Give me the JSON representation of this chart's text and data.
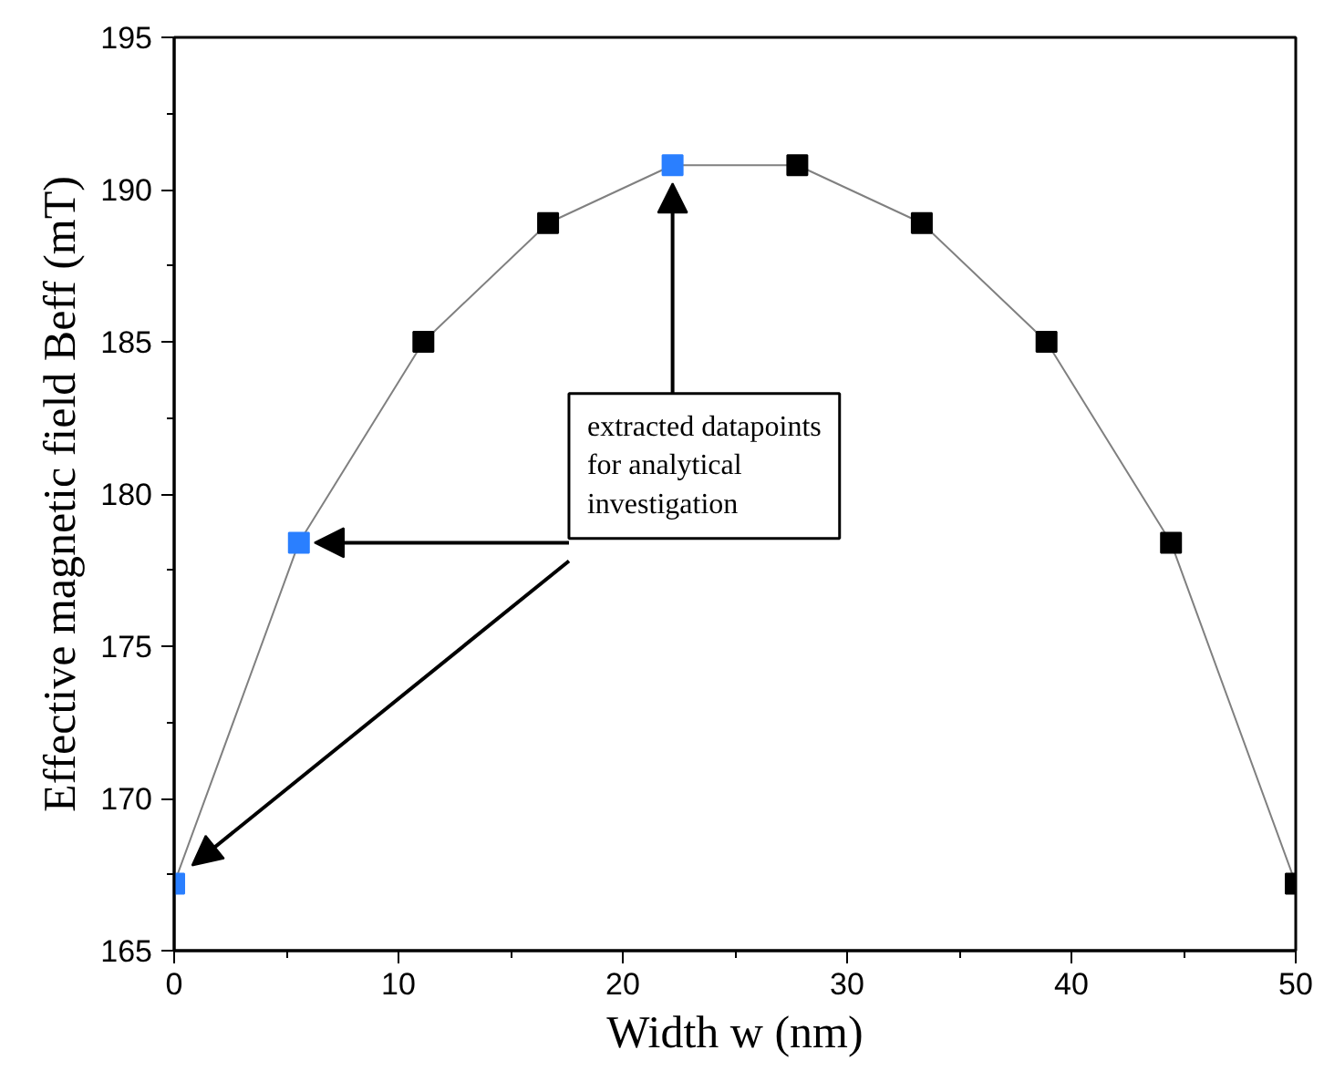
{
  "chart_data": {
    "type": "line",
    "xlabel": "Width w (nm)",
    "ylabel": "Effective magnetic field Beff (mT)",
    "x": [
      0,
      5.56,
      11.11,
      16.67,
      22.22,
      27.78,
      33.33,
      38.89,
      44.44,
      50
    ],
    "series": [
      {
        "color": "#808080",
        "values": [
          167.2,
          178.4,
          185.0,
          188.9,
          190.8,
          190.8,
          188.9,
          185.0,
          178.4,
          167.2
        ],
        "colors": [
          "#2a7fff",
          "#2a7fff",
          "#000000",
          "#000000",
          "#2a7fff",
          "#000000",
          "#000000",
          "#000000",
          "#000000",
          "#000000"
        ]
      }
    ],
    "marker": "square",
    "xlim": [
      0,
      50
    ],
    "ylim": [
      165,
      195
    ],
    "xticks": [
      0,
      10,
      20,
      30,
      40,
      50
    ],
    "yticks": [
      165,
      170,
      175,
      180,
      185,
      190,
      195
    ],
    "grid": false,
    "annotations": [
      {
        "text": "extracted datapoints\nfor analytical\ninvestigation",
        "x": 5.56,
        "y": 178.4
      }
    ]
  }
}
